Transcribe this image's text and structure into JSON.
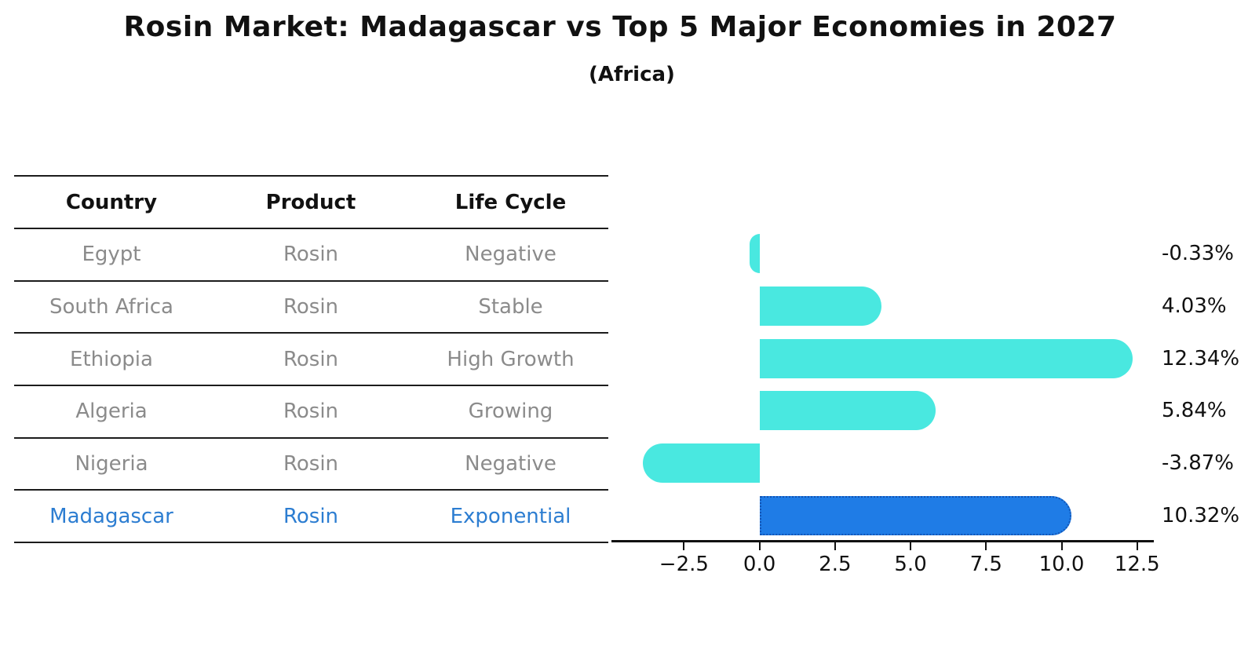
{
  "title": "Rosin Market: Madagascar vs Top 5 Major Economies in 2027",
  "subtitle": "(Africa)",
  "table": {
    "headers": [
      "Country",
      "Product",
      "Life Cycle"
    ],
    "rows": [
      {
        "country": "Egypt",
        "product": "Rosin",
        "life_cycle": "Negative"
      },
      {
        "country": "South Africa",
        "product": "Rosin",
        "life_cycle": "Stable"
      },
      {
        "country": "Ethiopia",
        "product": "Rosin",
        "life_cycle": "High Growth"
      },
      {
        "country": "Algeria",
        "product": "Rosin",
        "life_cycle": "Growing"
      },
      {
        "country": "Nigeria",
        "product": "Rosin",
        "life_cycle": "Negative"
      },
      {
        "country": "Madagascar",
        "product": "Rosin",
        "life_cycle": "Exponential"
      }
    ],
    "highlight_row_index": 5
  },
  "chart_data": {
    "type": "bar",
    "orientation": "horizontal",
    "title": "Rosin Market: Madagascar vs Top 5 Major Economies in 2027 (Africa)",
    "categories": [
      "Egypt",
      "South Africa",
      "Ethiopia",
      "Algeria",
      "Nigeria",
      "Madagascar"
    ],
    "values": [
      -0.33,
      4.03,
      12.34,
      5.84,
      -3.87,
      10.32
    ],
    "value_labels": [
      "-0.33%",
      "4.03%",
      "12.34%",
      "5.84%",
      "-3.87%",
      "10.32%"
    ],
    "x_ticks": [
      -2.5,
      0,
      2.5,
      5,
      7.5,
      10,
      12.5
    ],
    "x_tick_labels": [
      "−2.5",
      "0.0",
      "2.5",
      "5.0",
      "7.5",
      "10.0",
      "12.5"
    ],
    "xlim": [
      -4.9,
      13.0
    ],
    "grid": false,
    "legend": false,
    "bar_color": "#49e8e0",
    "highlight_bar_color": "#1f7ce6",
    "highlight_bar_border": "#1254b4",
    "highlight_index": 5
  },
  "colors": {
    "header_text": "#111111",
    "body_text": "#8b8b8b",
    "highlight_text": "#2c7dd1",
    "axis": "#111111"
  }
}
